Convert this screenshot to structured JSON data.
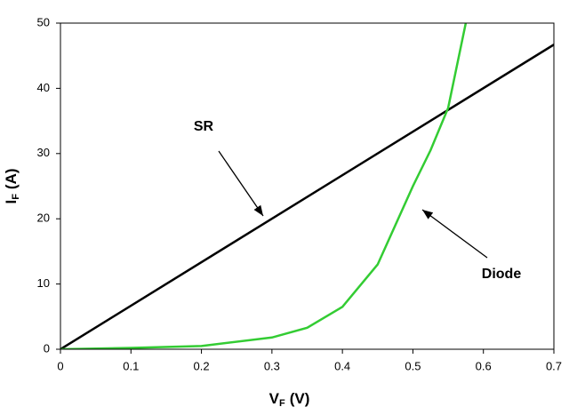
{
  "chart_data": {
    "type": "line",
    "x_label": {
      "main": "V",
      "sub": "F",
      "unit": "(V)"
    },
    "y_label": {
      "main": "I",
      "sub": "F",
      "unit": "(A)"
    },
    "series": [
      {
        "name": "SR",
        "color": "#000000",
        "x": [
          0,
          0.7
        ],
        "values": [
          0,
          46.7
        ]
      },
      {
        "name": "Diode",
        "color": "#33cc33",
        "x": [
          0,
          0.1,
          0.2,
          0.3,
          0.35,
          0.4,
          0.45,
          0.5,
          0.525,
          0.55,
          0.575
        ],
        "values": [
          0,
          0.2,
          0.5,
          1.8,
          3.3,
          6.5,
          13,
          25,
          30.5,
          37,
          50
        ]
      }
    ],
    "annotations": [
      "SR",
      "Diode"
    ],
    "xlim": [
      0,
      0.7
    ],
    "xticks": [
      0,
      0.1,
      0.2,
      0.3,
      0.4,
      0.5,
      0.6,
      0.7
    ],
    "ylim": [
      0,
      50
    ],
    "yticks": [
      0,
      10,
      20,
      30,
      40,
      50
    ],
    "shade_between": true,
    "shade_color": "#a6a6a6"
  }
}
